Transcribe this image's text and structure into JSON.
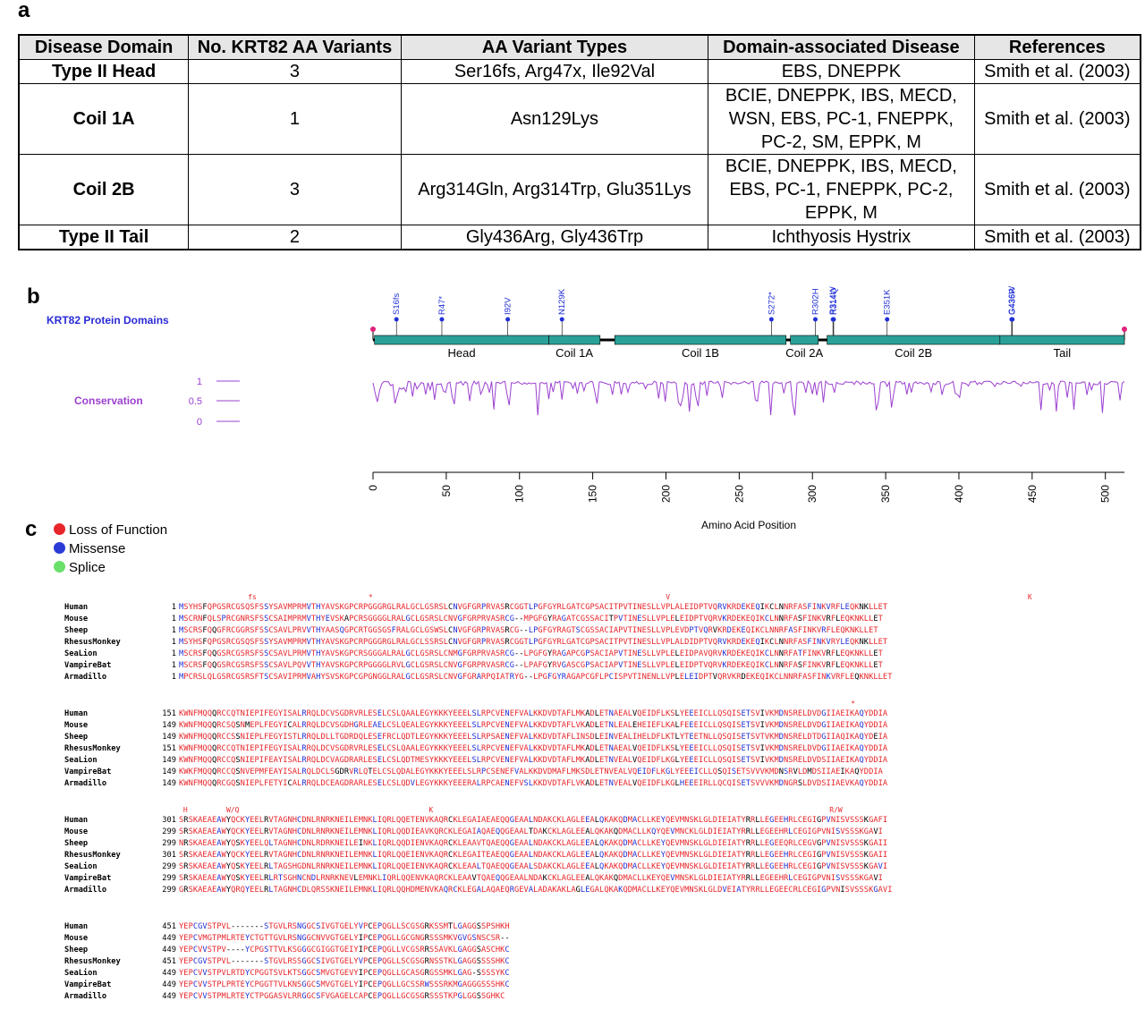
{
  "panel_a": {
    "letter": "a",
    "headers": [
      "Disease Domain",
      "No. KRT82 AA Variants",
      "AA Variant Types",
      "Domain-associated Disease",
      "References"
    ],
    "rows": [
      {
        "domain": "Type II Head",
        "count": "3",
        "variants": [
          "Ser16fs, Arg47x, Ile92Val"
        ],
        "disease": [
          "EBS, DNEPPK"
        ],
        "ref": "Smith et al. (2003)"
      },
      {
        "domain": "Coil 1A",
        "count": "1",
        "variants": [
          "Asn129Lys"
        ],
        "disease": [
          "BCIE, DNEPPK, IBS, MECD,",
          "WSN, EBS, PC-1, FNEPPK,",
          "PC-2, SM, EPPK, M"
        ],
        "ref": "Smith et al. (2003)"
      },
      {
        "domain": "Coil 2B",
        "count": "3",
        "variants": [
          "Arg314Gln, Arg314Trp, Glu351Lys"
        ],
        "disease": [
          "BCIE, DNEPPK, IBS, MECD,",
          "EBS, PC-1, FNEPPK, PC-2,",
          "EPPK, M"
        ],
        "ref": "Smith et al. (2003)"
      },
      {
        "domain": "Type II Tail",
        "count": "2",
        "variants": [
          "Gly436Arg, Gly436Trp"
        ],
        "disease": [
          "Ichthyosis Hystrix"
        ],
        "ref": "Smith et al. (2003)"
      }
    ]
  },
  "panel_b": {
    "letter": "b",
    "track_label": "KRT82 Protein Domains",
    "conservation_label": "Conservation",
    "cons_ticks": [
      "1",
      "0.5",
      "0"
    ],
    "axis_label": "Amino Acid Position",
    "axis_ticks": [
      0,
      50,
      100,
      150,
      200,
      250,
      300,
      350,
      400,
      450,
      500
    ],
    "protein_length": 513,
    "domains": [
      {
        "name": "Head",
        "start": 1,
        "end": 120
      },
      {
        "name": "Coil 1A",
        "start": 120,
        "end": 155
      },
      {
        "name": "Coil 1B",
        "start": 165,
        "end": 282
      },
      {
        "name": "Coil 2A",
        "start": 285,
        "end": 304
      },
      {
        "name": "Coil 2B",
        "start": 310,
        "end": 428
      },
      {
        "name": "Tail",
        "start": 428,
        "end": 513
      }
    ],
    "variants": [
      {
        "label": "S16fs",
        "pos": 16
      },
      {
        "label": "R47*",
        "pos": 47
      },
      {
        "label": "I92V",
        "pos": 92
      },
      {
        "label": "N129K",
        "pos": 129
      },
      {
        "label": "S272*",
        "pos": 272
      },
      {
        "label": "R302H",
        "pos": 302
      },
      {
        "label": "R314W",
        "pos": 314
      },
      {
        "label": "R314Q",
        "pos": 314.5
      },
      {
        "label": "E351K",
        "pos": 351
      },
      {
        "label": "G436W",
        "pos": 436
      },
      {
        "label": "G436R",
        "pos": 436.5
      }
    ],
    "colors": {
      "domain": "#2aa198",
      "variant": "#1f2fd6",
      "conservation": "#9b40d0",
      "label_blue": "#2a2ad6"
    }
  },
  "panel_c": {
    "letter": "c",
    "legend": [
      {
        "label": "Loss of Function",
        "color": "#e8252a"
      },
      {
        "label": "Missense",
        "color": "#2b3bd6"
      },
      {
        "label": "Splice",
        "color": "#69e06a"
      }
    ],
    "blocks": [
      {
        "marks": "                fs                          *                                                                    V                                                                                   K",
        "rows": [
          {
            "species": "Human",
            "start": "1",
            "seq": "MSYHSFQPGSRCGSQSFSSYSAVMPRMVTHYAVSKGPCRPGGGRGLRALGCLGSRSLCNVGFGRPRVASRCGGTLPGFGYRLGATCGPSACITPVTINESLLVPLALEIDPTVQRVKRDEKEQIKCLNNRFASFINKVRFLEQKNKLLET"
          },
          {
            "species": "Mouse",
            "start": "1",
            "seq": "MSCRNFQLSPRCGNRSFSSCSAIMPRMVTHYEVSKAPCRSGGGGLRALGCLGSRSLCNVGFGRPRVASRCG--MPGFGYRAGATCGSSACITPVTINESLLVPLELEIDPTVQRVKRDEKEQIKCLNNRFASFINKVRFLEQKNKLLET"
          },
          {
            "species": "Sheep",
            "start": "1",
            "seq": "MSCRSFQQGFRCGGRSFSSCSAVLPRVVTHYAASQGPCRTGGSGSFRALGCLGSWSLCNVGFGRPRVASRCG--LPGFGYRAGTSCGSSACIAPVTINESLLVPLEVDPTVQRVKRDEKEQIKCLNNRFASFINKVRFLEQKNKLLET"
          },
          {
            "species": "RhesusMonkey",
            "start": "1",
            "seq": "MSYHSFQPGSRCGSQSFSSYSAVMPRMVTHYAVSKGPCRPGGGRGLRALGCLSSRSLCNVGFGRPRVASRCGGTLPGFGYRLGATCGPSACITPVTINESLLVPLALDIDPTVQRVKRDEKEQIKCLNNRFASFINKVRYLEQKNKLLET"
          },
          {
            "species": "SeaLion",
            "start": "1",
            "seq": "MSCRSFQQGSRCGSRSFSSCSAVLPRMVTHYAVSKGPCRSGGGALRALGCLGSRSLCNMGFGRPRVASRCG--LPGFGYRAGAPCGPSACIAPVTINESLLVPLELEIDPAVQRVKRDEKEQIKCLNNRFATFINKVRFLEQKNKLLET"
          },
          {
            "species": "VampireBat",
            "start": "1",
            "seq": "MSCRSFQQGSRCGSRSFSSCSAVLPQVVTHYAVSKGPCRPGGGGLRVLGCLGSRSLCNVGFGRPRVASRCG--LPAFGYRVGASCGPSACIAPVTINESLLVPLELEIDPTVQRVKRDEKEQIKCLNNRFASFINKVRFLEQKNKLLET"
          },
          {
            "species": "Armadillo",
            "start": "1",
            "seq": "MPCRSLQLGSRCGSRSFTSCSAVIPRMVAHYSVSKGPCGPGNGGLRALGCLGSRSLCNVGFGRARPQIATRYG--LPGFGYRAGAPCGFLPCISPVTINENLLVPLELEIDPTVQRVKRDEKEQIKCLNNRFASFINKVRFLEQKNKLLET"
          }
        ]
      },
      {
        "marks": "                                                                                                                                                            *",
        "rows": [
          {
            "species": "Human",
            "start": "151",
            "seq": "KWNFMQQQRCCQTNIEPIFEGYISALRRQLDCVSGDRVRLESELCSLQAALEGYKKKYEEELSLRPCVENEFVALKKDVDTAFLMKADLETNAEALVQEIDFLKSLYEEEICLLQSQISETSVIVKMDNSRELDVDGIIAEIKAQYDDIA"
          },
          {
            "species": "Mouse",
            "start": "149",
            "seq": "KWNFMQQQRCSQSNMEPLFEGYICALRRQLDCVSGDHGRLEAELCSLQEALEGYKKKYEEELSLRPCVENEFVALKKDVDTAFLVKADLETNLEALEHEIEFLKALFEEEICLLQSQISETSVIVKMDNSRELDVDGIIAEIKAQYDDIA"
          },
          {
            "species": "Sheep",
            "start": "149",
            "seq": "KWNFMQQQRCCSSNIEPLFEGYISTLRRQLDLLTGDRDQLESEFRCLQDTLEGYKKKYEEELSLRPSAENEFVALKKDVDTAFLINSDLEINVEALIHELDFLKTLYTEETNLLQSQISETSVTVKMDNSRELDTDGIIAQIKAQYDEIA"
          },
          {
            "species": "RhesusMonkey",
            "start": "151",
            "seq": "KWNFMQQQRCCQTNIEPIFEGYISALRRQLDCVSGDRVRLESELCSLQAALEGYKKKYEEELSLRPCVENEFVALKKDVDTAFLMKADLETNAEALVQEIDFLKSLYEEEICLLQSQISETSVIVKMDNSRELDVDGIIAEIKAQYDDIA"
          },
          {
            "species": "SeaLion",
            "start": "149",
            "seq": "KWNFMQQQRCCQSNIEPIFEAYISALRRQLDCVAGDRARLESELCSLQDTMESYKKKYEEELSLRPCVENEFVALKKDVDTAFLMKADLETNVEALVQEIDFLKGLYEEEICLLQSQISETSVIVKMDNSRELDVDSIIAEIKAQYDDIA"
          },
          {
            "species": "VampireBat",
            "start": "149",
            "seq": "KWKFMQQQRCCQSNVEPMFEAYISALRQLDCLSGDRVRLQTELCSLQDALEGYKKKYEEELSLRPCSENEFVALKKDVDMAFLMKSDLETNVEALVQEIDFLKGLYEEEICLLQSQISETSVVVKMDNSRVLDMDSIIAEIKAQYDDIA"
          },
          {
            "species": "Armadillo",
            "start": "149",
            "seq": "KWNFMQQQRCGQSNIEPLFETYICALRRQLDCEAGDRARLESELCSLQDVLEGYKKKYEEERALRPCAENEFVSLKKDVDTAFLVKADLETNVEALVQEIDFLKGLHEEEIRLLQCQISETSVVVKMDNGRSLDVDSIIAEVKAQYDDIA"
          }
        ]
      },
      {
        "marks": " H         W/Q                                            K                                                                                            R/W",
        "rows": [
          {
            "species": "Human",
            "start": "301",
            "seq": "SRSKAEAEAWYQCKYEELRVTAGNHCDNLRNRKNEILEMNKLIQRLQQETENVKAQRCKLEGAIAEAEQQGEAALNDAKCKLAGLEEALQKAKQDMACLLKEYQEVMNSKLGLDIEIATYRRLLEGEEHRLCEGIGPVNISVSSSKGAFI"
          },
          {
            "species": "Mouse",
            "start": "299",
            "seq": "SRSKAEAEAWYQCKYEELRVTAGNHCDNLRNRKNEILEMNKLIQRLQQDIEAVKQRCKLEGAIAQAEQQGEAALTDAKCKLAGLEEALQKAKQDMACLLKQYQEVMNCKLGLDIEIATYRRLLEGEEHRLCEGIGPVNISVSSSKGAVI"
          },
          {
            "species": "Sheep",
            "start": "299",
            "seq": "NRSKAEAEAWYQSKYEELQLTAGNHCDNLRDRKNEILEINKLIQRLQQDIENVKAQRCKLEAAVTQAEQQGEAALNDAKCKLAGLEEALQKAKQDMACLLKEYQEVMNSKLGLDIEIATYRRLLEGEEQRLCEGVGPVNISVSSSKGAII"
          },
          {
            "species": "RhesusMonkey",
            "start": "301",
            "seq": "SRSKAEAEAWYQCKYEELRVTAGNHCDNLRNRKNEILEMNKLIQRLQQEIENVKAQRCKLEGAITEAEQQGEAALNDAKCKLAGLEEALQKAKQDMACLLKEYQEVMNSKLGLDIEIATYRRLLEGEEHRLCEGIGPVNISVSSSKGAII"
          },
          {
            "species": "SeaLion",
            "start": "299",
            "seq": "SRSKAEAEAWYQSKYEELRLTAGSHGDNLRNRKNEILEMNKLIQRLQQEIENVKAQRCKLEAALTQAEQQGEAALSDAKCKLAGLEEALQKAKQDMACLLKEYQEVMNSKLGLDIEIATYRRLLEGEEHRLCEGIGPVNISVSSSKGAVI"
          },
          {
            "species": "VampireBat",
            "start": "299",
            "seq": "SRSKAEAEAWYQSKYEELRLRTSGHNCNDLRNRKNEVLEMNKLIQRLQQENVKAQRCKLEAAVTQAEQQGEAALNDAKCKLAGLEEALQKAKQDMACLLKEYQEVMNSKLGLDIEIATYRRLLEGEEHRLCEGIGPVNISVSSSKGAVI"
          },
          {
            "species": "Armadillo",
            "start": "299",
            "seq": "GRSKAEAEAWYQRQYEELRLTAGNHCDLQRSSKNEILEMNKLIQRLQQHDMENVKAQRCKLEGALAQAEQRGEVALADAKAKLAGLEGALQKAKQDMACLLKEYQEVMNSKLGLDVEIATYRRLLEGEECRLCEGIGPVNISVSSSKGAVI"
          }
        ]
      },
      {
        "marks": "",
        "rows": [
          {
            "species": "Human",
            "start": "451",
            "seq": "YEPCGVSTPVL-------STGVLRSNGGCSIVGTGELYVPCEPQGLLSCGSGRKSSMTLGAGGSSPSHKH"
          },
          {
            "species": "Mouse",
            "start": "449",
            "seq": "YEPCVMGTPMLRTEYCTGTTGVLRSNGGCNVVGTGELYIPCEPQGLLGCGNGRSSSMKVGVGSNSCSR--"
          },
          {
            "species": "Sheep",
            "start": "449",
            "seq": "YEPCVVSTPV----YCPGSTTVLKSGGGCGIGGTGEIYIPCEPQGLLVCGSRRSSAVKLGAGGSASCHKC"
          },
          {
            "species": "RhesusMonkey",
            "start": "451",
            "seq": "YEPCGVSTPVL-------STGVLRSSGGCSIVGTGELYVPCEPQGLLSCGSGRNSSTKLGAGGSSSSHKC"
          },
          {
            "species": "SeaLion",
            "start": "449",
            "seq": "YEPCVVSTPVLRTDYCPGGTSVLKTSGGCSMVGTGEVYIPCEPQGLLGCASGRGSSMKLGAG-SSSSYKC"
          },
          {
            "species": "VampireBat",
            "start": "449",
            "seq": "YEPCVVSTPLPRTEYCPGGTTVLKNSGGCSMVGTGELYIPCEPQGLLGCSSRWSSSRKMGAGGGSSSHKC"
          },
          {
            "species": "Armadillo",
            "start": "449",
            "seq": "YEPCVVSTPMLRTEYCTPGGASVLRRGGCSFVGAGELCAPCEPQGLLGCGSGRSSSTKPGLGGSSGHKC"
          }
        ]
      }
    ]
  }
}
